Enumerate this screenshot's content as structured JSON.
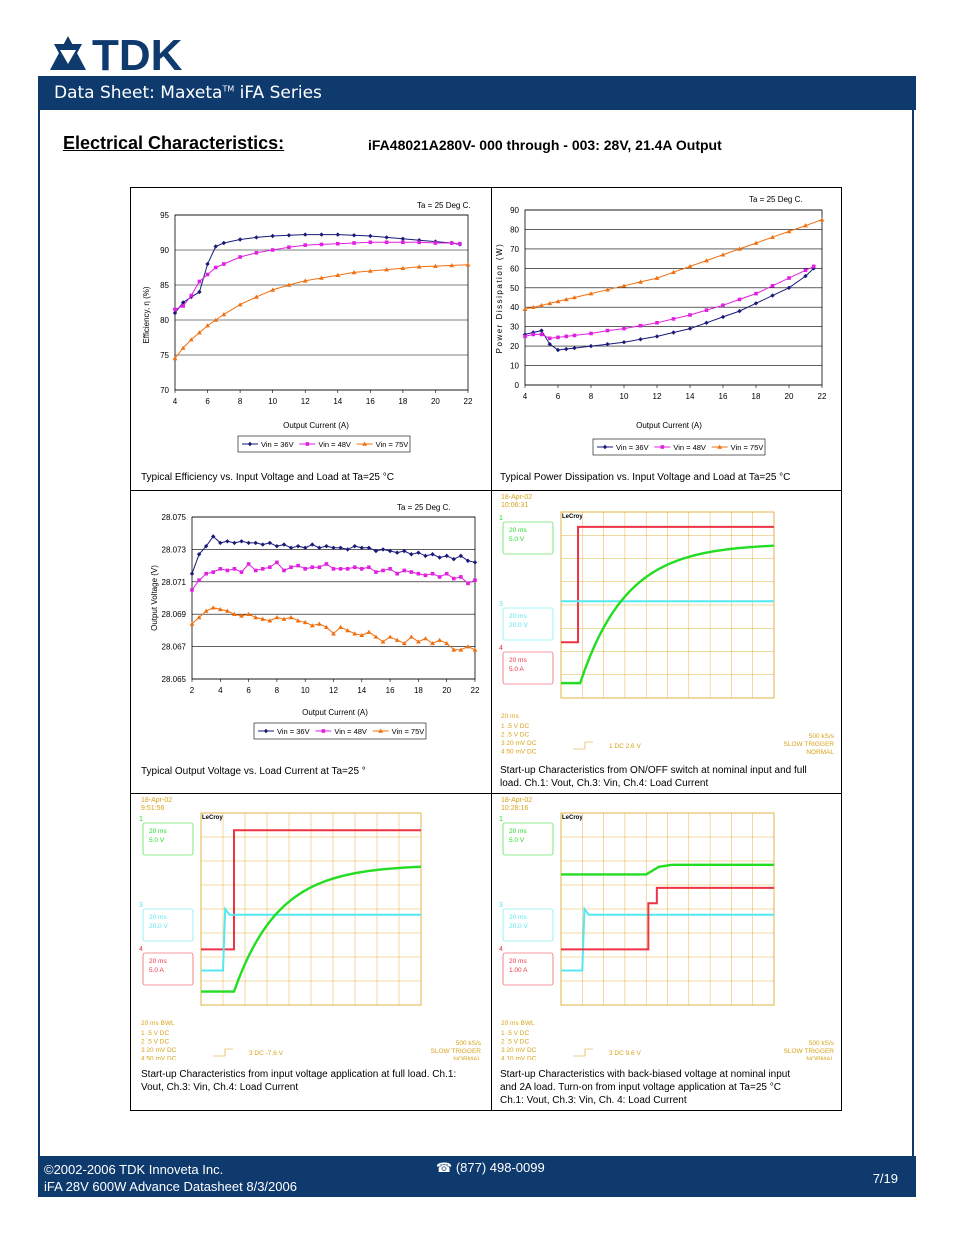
{
  "header": {
    "logo_text": "TDK",
    "title": "Data Sheet: Maxeta",
    "title_tm": "TM",
    "title_series": " iFA Series"
  },
  "section": {
    "title": "Electrical Characteristics:",
    "subtitle": "iFA48021A280V- 000 through - 003:   28V, 21.4A Output"
  },
  "charts": {
    "efficiency": {
      "annotation": "Ta = 25 Deg C.",
      "xlabel": "Output Current (A)",
      "ylabel": "Efficiency, η (%)",
      "caption": "Typical Efficiency vs. Input Voltage and Load at Ta=25 °C"
    },
    "dissipation": {
      "annotation": "Ta = 25 Deg C.",
      "xlabel": "Output Current (A)",
      "ylabel": "Power Dissipation (W)",
      "caption": "Typical Power Dissipation vs. Input Voltage and Load at Ta=25 °C"
    },
    "voltage": {
      "annotation": "Ta = 25 Deg C.",
      "xlabel": "Output Current (A)",
      "ylabel": "Output Voltage (V)",
      "caption": "Typical Output Voltage vs. Load Current at Ta=25 °"
    },
    "legend": [
      "Vin = 36V",
      "Vin = 48V",
      "Vin = 75V"
    ],
    "series_colors": [
      "#1a1a7a",
      "#e020e0",
      "#f07010"
    ]
  },
  "chart_data": [
    {
      "type": "line",
      "ylim": [
        70,
        95
      ],
      "xlim": [
        4,
        22
      ],
      "yticks": [
        70,
        75,
        80,
        85,
        90,
        95
      ],
      "xticks": [
        4,
        6,
        8,
        10,
        12,
        14,
        16,
        18,
        20,
        22
      ],
      "series": [
        {
          "name": "Vin = 36V",
          "x": [
            4,
            4.5,
            5,
            5.5,
            6,
            6.5,
            7,
            8,
            9,
            10,
            11,
            12,
            13,
            14,
            15,
            16,
            17,
            18,
            19,
            20,
            21,
            21.5
          ],
          "y": [
            81,
            82.5,
            83.3,
            84,
            88,
            90.5,
            91,
            91.5,
            91.8,
            92,
            92.1,
            92.2,
            92.2,
            92.2,
            92.1,
            92,
            91.8,
            91.6,
            91.4,
            91.2,
            91,
            90.8
          ]
        },
        {
          "name": "Vin = 48V",
          "x": [
            4,
            4.5,
            5,
            5.5,
            6,
            6.5,
            7,
            8,
            9,
            10,
            11,
            12,
            13,
            14,
            15,
            16,
            17,
            18,
            19,
            20,
            21,
            21.5
          ],
          "y": [
            81.5,
            82,
            83.5,
            85.5,
            86.5,
            87.5,
            88,
            89,
            89.6,
            90,
            90.4,
            90.7,
            90.8,
            90.9,
            91,
            91.1,
            91.1,
            91.1,
            91.1,
            91,
            91,
            90.9
          ]
        },
        {
          "name": "Vin = 75V",
          "x": [
            4,
            4.5,
            5,
            5.5,
            6,
            6.5,
            7,
            8,
            9,
            10,
            11,
            12,
            13,
            14,
            15,
            16,
            17,
            18,
            19,
            20,
            21,
            22
          ],
          "y": [
            74.5,
            76,
            77.2,
            78.2,
            79.2,
            80,
            80.8,
            82.2,
            83.3,
            84.3,
            85,
            85.6,
            86,
            86.4,
            86.8,
            87,
            87.2,
            87.4,
            87.6,
            87.7,
            87.8,
            87.9
          ]
        }
      ]
    },
    {
      "type": "line",
      "ylim": [
        0,
        90
      ],
      "xlim": [
        4,
        22
      ],
      "yticks": [
        0,
        10,
        20,
        30,
        40,
        50,
        60,
        70,
        80,
        90
      ],
      "xticks": [
        4,
        6,
        8,
        10,
        12,
        14,
        16,
        18,
        20,
        22
      ],
      "series": [
        {
          "name": "Vin = 36V",
          "x": [
            4,
            4.5,
            5,
            5.5,
            6,
            6.5,
            7,
            8,
            9,
            10,
            11,
            12,
            13,
            14,
            15,
            16,
            17,
            18,
            19,
            20,
            21,
            21.5
          ],
          "y": [
            26,
            27,
            28,
            21,
            18,
            18.5,
            19,
            20,
            21,
            22,
            23.5,
            25,
            27,
            29,
            32,
            35,
            38,
            42,
            46,
            50,
            56,
            60
          ]
        },
        {
          "name": "Vin = 48V",
          "x": [
            4,
            4.5,
            5,
            5.5,
            6,
            6.5,
            7,
            8,
            9,
            10,
            11,
            12,
            13,
            14,
            15,
            16,
            17,
            18,
            19,
            20,
            21,
            21.5
          ],
          "y": [
            25,
            26,
            26,
            24,
            24.5,
            25,
            25.5,
            26.5,
            28,
            29,
            30.5,
            32,
            34,
            36,
            38.5,
            41,
            44,
            47,
            51,
            55,
            59,
            61
          ]
        },
        {
          "name": "Vin = 75V",
          "x": [
            4,
            4.5,
            5,
            5.5,
            6,
            6.5,
            7,
            8,
            9,
            10,
            11,
            12,
            13,
            14,
            15,
            16,
            17,
            18,
            19,
            20,
            21,
            22
          ],
          "y": [
            39,
            40,
            41,
            42,
            43,
            44,
            45,
            47,
            49,
            51,
            53,
            55,
            58,
            61,
            64,
            67,
            70,
            73,
            76,
            79,
            82,
            85
          ]
        }
      ]
    },
    {
      "type": "line",
      "ylim": [
        28.065,
        28.075
      ],
      "xlim": [
        2,
        22
      ],
      "yticks": [
        28.065,
        28.067,
        28.069,
        28.071,
        28.073,
        28.075
      ],
      "xticks": [
        2,
        4,
        6,
        8,
        10,
        12,
        14,
        16,
        18,
        20,
        22
      ],
      "series": [
        {
          "name": "Vin = 36V",
          "x": [
            2,
            2.5,
            3,
            3.5,
            4,
            4.5,
            5,
            5.5,
            6,
            6.5,
            7,
            7.5,
            8,
            8.5,
            9,
            9.5,
            10,
            10.5,
            11,
            11.5,
            12,
            12.5,
            13,
            13.5,
            14,
            14.5,
            15,
            15.5,
            16,
            16.5,
            17,
            17.5,
            18,
            18.5,
            19,
            19.5,
            20,
            20.5,
            21,
            21.5,
            22
          ],
          "y": [
            28.0715,
            28.0727,
            28.0732,
            28.0738,
            28.0734,
            28.0735,
            28.0734,
            28.0735,
            28.0734,
            28.0734,
            28.0733,
            28.0734,
            28.0732,
            28.0733,
            28.0731,
            28.0732,
            28.0731,
            28.0733,
            28.0731,
            28.0732,
            28.0731,
            28.0731,
            28.073,
            28.0732,
            28.0731,
            28.0731,
            28.0729,
            28.073,
            28.0729,
            28.0728,
            28.0729,
            28.0727,
            28.0728,
            28.0726,
            28.0727,
            28.0725,
            28.0726,
            28.0724,
            28.0726,
            28.0723,
            28.0722
          ]
        },
        {
          "name": "Vin = 48V",
          "x": [
            2,
            2.5,
            3,
            3.5,
            4,
            4.5,
            5,
            5.5,
            6,
            6.5,
            7,
            7.5,
            8,
            8.5,
            9,
            9.5,
            10,
            10.5,
            11,
            11.5,
            12,
            12.5,
            13,
            13.5,
            14,
            14.5,
            15,
            15.5,
            16,
            16.5,
            17,
            17.5,
            18,
            18.5,
            19,
            19.5,
            20,
            20.5,
            21,
            21.5,
            22
          ],
          "y": [
            28.0705,
            28.0711,
            28.0715,
            28.0716,
            28.0718,
            28.0717,
            28.0718,
            28.0716,
            28.0721,
            28.0717,
            28.0718,
            28.0719,
            28.0722,
            28.0717,
            28.0719,
            28.072,
            28.0718,
            28.0719,
            28.0719,
            28.0721,
            28.0718,
            28.0718,
            28.0718,
            28.0719,
            28.0718,
            28.0719,
            28.0716,
            28.0717,
            28.0718,
            28.0715,
            28.0717,
            28.0716,
            28.0715,
            28.0714,
            28.0715,
            28.0713,
            28.0715,
            28.0712,
            28.0713,
            28.0709,
            28.0711
          ]
        },
        {
          "name": "Vin = 75V",
          "x": [
            2,
            2.5,
            3,
            3.5,
            4,
            4.5,
            5,
            5.5,
            6,
            6.5,
            7,
            7.5,
            8,
            8.5,
            9,
            9.5,
            10,
            10.5,
            11,
            11.5,
            12,
            12.5,
            13,
            13.5,
            14,
            14.5,
            15,
            15.5,
            16,
            16.5,
            17,
            17.5,
            18,
            18.5,
            19,
            19.5,
            20,
            20.5,
            21,
            21.5,
            22
          ],
          "y": [
            28.0684,
            28.0688,
            28.0692,
            28.0694,
            28.0693,
            28.0692,
            28.069,
            28.0689,
            28.069,
            28.0688,
            28.0687,
            28.0686,
            28.0688,
            28.0687,
            28.0688,
            28.0686,
            28.0685,
            28.0683,
            28.0684,
            28.0682,
            28.0678,
            28.0682,
            28.068,
            28.0678,
            28.0677,
            28.0679,
            28.0676,
            28.0673,
            28.0676,
            28.0674,
            28.0672,
            28.0676,
            28.0673,
            28.0675,
            28.0672,
            28.0674,
            28.0672,
            28.0668,
            28.0668,
            28.067,
            28.0668
          ]
        }
      ]
    }
  ],
  "scopes": {
    "s1": {
      "date": "18-Apr-02",
      "time": "10:06:31",
      "ch1_scale": [
        "20 ms",
        "5.0 V"
      ],
      "ch3_scale": [
        "20 ms",
        "20.0 V"
      ],
      "ch4_scale": [
        "20 ms",
        "5.0 A"
      ],
      "timebase": "20 ms",
      "chan_list": [
        "1  .5  V  DC",
        "2  .5  V  DC",
        "3  20 mV  DC",
        "4  50 mV  DC"
      ],
      "trig": "1  DC 2.6 V",
      "rate": "500 kS/s",
      "mode": "SLOW TRIGGER",
      "mode2": "NORMAL",
      "brand": "LeCroy",
      "caption": "Start-up Characteristics from ON/OFF switch at nominal input and full load.  Ch.1: Vout, Ch.3: Vin, Ch.4: Load Current"
    },
    "s2": {
      "date": "18-Apr-02",
      "time": "9:51:56",
      "ch1_scale": [
        "20 ms",
        "5.0 V"
      ],
      "ch3_scale": [
        "20 ms",
        "20.0 V"
      ],
      "ch4_scale": [
        "20 ms",
        "5.0 A"
      ],
      "timebase": "20 ms      BWL",
      "chan_list": [
        "1  .5  V  DC",
        "2  .5  V  DC",
        "3  20 mV  DC",
        "4  50 mV  DC"
      ],
      "trig": "3  DC -7.6 V",
      "rate": "500 kS/s",
      "mode": "SLOW TRIGGER",
      "mode2": "NORMAL",
      "brand": "LeCroy",
      "caption": "Start-up Characteristics from input voltage application at full load. Ch.1: Vout, Ch.3: Vin, Ch.4: Load Current"
    },
    "s3": {
      "date": "18-Apr-02",
      "time": "10:28:16",
      "ch1_scale": [
        "20 ms",
        "5.0 V"
      ],
      "ch3_scale": [
        "20 ms",
        "20.0 V"
      ],
      "ch4_scale": [
        "20 ms",
        "1.00 A"
      ],
      "timebase": "20 ms      BWL",
      "chan_list": [
        "1  .5  V  DC",
        "2  .5  V  DC",
        "3  20 mV  DC",
        "4  10 mV  DC"
      ],
      "trig": "3  DC 9.6 V",
      "rate": "500 kS/s",
      "mode": "SLOW TRIGGER",
      "mode2": "NORMAL",
      "brand": "LeCroy",
      "caption_1": "Start-up Characteristics with back-biased voltage at nominal input",
      "caption_2": "and 2A load. Turn-on from input voltage application at Ta=25 °C",
      "caption_3": "Ch.1: Vout, Ch.3: Vin, Ch. 4: Load Current"
    }
  },
  "footer": {
    "copyright": "©2002-2006 TDK Innoveta Inc.",
    "doc": "iFA 28V 600W Advance Datasheet   8/3/2006",
    "phone_icon": "☎",
    "phone": "(877) 498-0099",
    "page": "7/19"
  }
}
